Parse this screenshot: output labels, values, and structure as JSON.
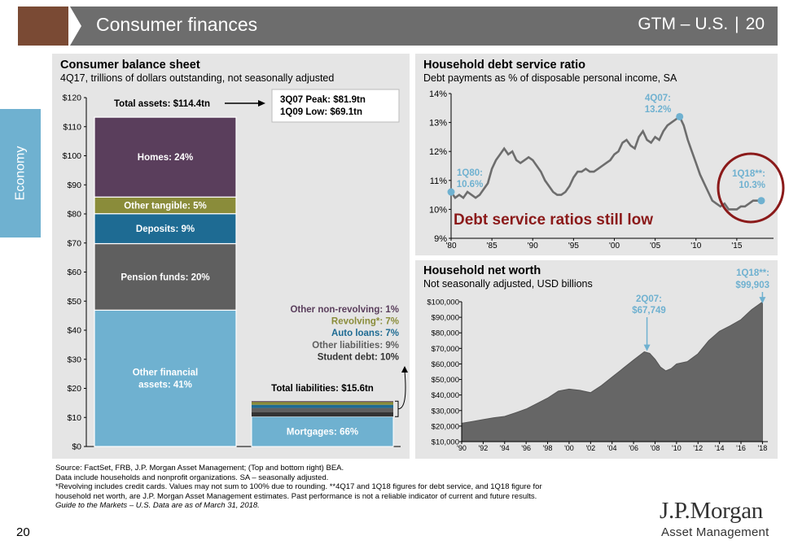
{
  "header": {
    "title": "Consumer finances",
    "product": "GTM – U.S.",
    "page": "20"
  },
  "side_tab": "Economy",
  "balance_sheet": {
    "title": "Consumer balance sheet",
    "subtitle": "4Q17, trillions of dollars outstanding, not seasonally adjusted",
    "total_assets_label": "Total assets: $114.4tn",
    "callout_peak": "3Q07 Peak: $81.9tn",
    "callout_low": "1Q09 Low:  $69.1tn",
    "total_liabilities_label": "Total liabilities: $15.6tn"
  },
  "debt_service": {
    "title": "Household debt service ratio",
    "subtitle": "Debt payments as % of disposable personal income, SA",
    "annotation_start": [
      "1Q80:",
      "10.6%"
    ],
    "annotation_peak": [
      "4Q07:",
      "13.2%"
    ],
    "annotation_end": [
      "1Q18**:",
      "10.3%"
    ],
    "headline": "Debt service ratios still low"
  },
  "net_worth": {
    "title": "Household net worth",
    "subtitle": "Not seasonally adjusted, USD billions",
    "annotation_peak": [
      "2Q07:",
      "$67,749"
    ],
    "annotation_end": [
      "1Q18**:",
      "$99,903"
    ]
  },
  "footnotes": [
    "Source: FactSet, FRB, J.P. Morgan Asset Management; (Top and bottom right) BEA.",
    "Data include households and nonprofit organizations. SA – seasonally adjusted.",
    "*Revolving includes credit cards. Values may not sum to 100% due to rounding. **4Q17 and 1Q18 figures for debt service, and 1Q18 figure for",
    "household net worth, are J.P. Morgan Asset Management estimates. Past performance is not a reliable indicator of current and future results.",
    "Guide to the Markets – U.S. Data are as of March 31, 2018."
  ],
  "page_number": "20",
  "logo": {
    "main": "J.P.Morgan",
    "sub": "Asset Management"
  },
  "colors": {
    "header": "#6d6d6d",
    "header_accent": "#7a4a34",
    "side_tab": "#6fb1d0",
    "panel": "#e5e5e5",
    "homes": "#5a3e5c",
    "other_tangible": "#8a8c3a",
    "deposits": "#1e6b93",
    "pension": "#5f5f5f",
    "other_financial": "#6fb1d0",
    "mortgages": "#6fb1d0",
    "line": "#6d6d6d",
    "highlight": "#8b1a1a",
    "marker": "#6fb1d0"
  },
  "chart_data": [
    {
      "type": "bar",
      "name": "Consumer balance sheet",
      "ylim": [
        0,
        120
      ],
      "yticks": [
        "$0",
        "$10",
        "$20",
        "$30",
        "$40",
        "$50",
        "$60",
        "$70",
        "$80",
        "$90",
        "$100",
        "$110",
        "$120"
      ],
      "assets_total": 114.4,
      "liabilities_total": 15.6,
      "assets": [
        {
          "label": "Other financial assets: 41%",
          "lines": [
            "Other financial",
            "assets: 41%"
          ],
          "pct": 41,
          "color": "#6fb1d0"
        },
        {
          "label": "Pension funds: 20%",
          "lines": [
            "Pension funds: 20%"
          ],
          "pct": 20,
          "color": "#5f5f5f"
        },
        {
          "label": "Deposits: 9%",
          "lines": [
            "Deposits: 9%"
          ],
          "pct": 9,
          "color": "#1e6b93"
        },
        {
          "label": "Other tangible: 5%",
          "lines": [
            "Other tangible: 5%"
          ],
          "pct": 5,
          "color": "#8a8c3a"
        },
        {
          "label": "Homes: 24%",
          "lines": [
            "Homes: 24%"
          ],
          "pct": 24,
          "color": "#5a3e5c"
        }
      ],
      "liabilities": [
        {
          "label": "Mortgages: 66%",
          "pct": 66,
          "color": "#6fb1d0",
          "textColor": "#ffffff"
        },
        {
          "label": "Student debt: 10%",
          "pct": 10,
          "color": "#333333",
          "textColor": "#333333"
        },
        {
          "label": "Other liabilities: 9%",
          "pct": 9,
          "color": "#5f5f5f",
          "textColor": "#5f5f5f"
        },
        {
          "label": "Auto loans: 7%",
          "pct": 7,
          "color": "#1e6b93",
          "textColor": "#1e6b93"
        },
        {
          "label": "Revolving*:  7%",
          "pct": 7,
          "color": "#8a8c3a",
          "textColor": "#8a8c3a"
        },
        {
          "label": "Other non-revolving: 1%",
          "pct": 1,
          "color": "#5a3e5c",
          "textColor": "#5a3e5c"
        }
      ]
    },
    {
      "type": "line",
      "name": "Household debt service ratio",
      "ylim": [
        9,
        14
      ],
      "xlim": [
        1980,
        2019.5
      ],
      "yticks": [
        "9%",
        "10%",
        "11%",
        "12%",
        "13%",
        "14%"
      ],
      "xticks": [
        {
          "x": 1980,
          "label": "'80"
        },
        {
          "x": 1985,
          "label": "'85"
        },
        {
          "x": 1990,
          "label": "'90"
        },
        {
          "x": 1995,
          "label": "'95"
        },
        {
          "x": 2000,
          "label": "'00"
        },
        {
          "x": 2005,
          "label": "'05"
        },
        {
          "x": 2010,
          "label": "'10"
        },
        {
          "x": 2015,
          "label": "'15"
        }
      ],
      "points": [
        [
          1980.0,
          10.6
        ],
        [
          1980.5,
          10.4
        ],
        [
          1981.0,
          10.5
        ],
        [
          1981.5,
          10.4
        ],
        [
          1982.0,
          10.6
        ],
        [
          1982.5,
          10.5
        ],
        [
          1983.0,
          10.4
        ],
        [
          1983.5,
          10.5
        ],
        [
          1984.0,
          10.7
        ],
        [
          1984.5,
          10.9
        ],
        [
          1985.0,
          11.4
        ],
        [
          1985.5,
          11.7
        ],
        [
          1986.0,
          11.9
        ],
        [
          1986.5,
          12.1
        ],
        [
          1987.0,
          11.9
        ],
        [
          1987.5,
          12.0
        ],
        [
          1988.0,
          11.7
        ],
        [
          1988.5,
          11.6
        ],
        [
          1989.0,
          11.7
        ],
        [
          1989.5,
          11.8
        ],
        [
          1990.0,
          11.7
        ],
        [
          1990.5,
          11.5
        ],
        [
          1991.0,
          11.3
        ],
        [
          1991.5,
          11.0
        ],
        [
          1992.0,
          10.8
        ],
        [
          1992.5,
          10.6
        ],
        [
          1993.0,
          10.5
        ],
        [
          1993.5,
          10.5
        ],
        [
          1994.0,
          10.6
        ],
        [
          1994.5,
          10.8
        ],
        [
          1995.0,
          11.1
        ],
        [
          1995.5,
          11.3
        ],
        [
          1996.0,
          11.3
        ],
        [
          1996.5,
          11.4
        ],
        [
          1997.0,
          11.3
        ],
        [
          1997.5,
          11.3
        ],
        [
          1998.0,
          11.4
        ],
        [
          1998.5,
          11.5
        ],
        [
          1999.0,
          11.6
        ],
        [
          1999.5,
          11.7
        ],
        [
          2000.0,
          11.9
        ],
        [
          2000.5,
          12.0
        ],
        [
          2001.0,
          12.3
        ],
        [
          2001.5,
          12.4
        ],
        [
          2002.0,
          12.2
        ],
        [
          2002.5,
          12.1
        ],
        [
          2003.0,
          12.5
        ],
        [
          2003.5,
          12.7
        ],
        [
          2004.0,
          12.4
        ],
        [
          2004.5,
          12.3
        ],
        [
          2005.0,
          12.5
        ],
        [
          2005.5,
          12.4
        ],
        [
          2006.0,
          12.7
        ],
        [
          2006.5,
          12.9
        ],
        [
          2007.0,
          13.0
        ],
        [
          2007.5,
          13.1
        ],
        [
          2008.0,
          13.2
        ],
        [
          2008.5,
          12.9
        ],
        [
          2009.0,
          12.4
        ],
        [
          2009.5,
          12.0
        ],
        [
          2010.0,
          11.6
        ],
        [
          2010.5,
          11.2
        ],
        [
          2011.0,
          10.9
        ],
        [
          2011.5,
          10.6
        ],
        [
          2012.0,
          10.3
        ],
        [
          2012.5,
          10.2
        ],
        [
          2013.0,
          10.1
        ],
        [
          2013.5,
          10.2
        ],
        [
          2014.0,
          10.0
        ],
        [
          2014.5,
          10.0
        ],
        [
          2015.0,
          10.0
        ],
        [
          2015.5,
          10.1
        ],
        [
          2016.0,
          10.1
        ],
        [
          2016.5,
          10.2
        ],
        [
          2017.0,
          10.3
        ],
        [
          2017.5,
          10.3
        ],
        [
          2018.0,
          10.3
        ]
      ],
      "markers": [
        [
          1980.0,
          10.6
        ],
        [
          2008.0,
          13.2
        ],
        [
          2018.0,
          10.3
        ]
      ]
    },
    {
      "type": "area",
      "name": "Household net worth",
      "ylim": [
        10000,
        100000
      ],
      "xlim": [
        1990,
        2018.5
      ],
      "yticks": [
        "$10,000",
        "$20,000",
        "$30,000",
        "$40,000",
        "$50,000",
        "$60,000",
        "$70,000",
        "$80,000",
        "$90,000",
        "$100,000"
      ],
      "xticks": [
        {
          "x": 1990,
          "label": "'90"
        },
        {
          "x": 1992,
          "label": "'92"
        },
        {
          "x": 1994,
          "label": "'94"
        },
        {
          "x": 1996,
          "label": "'96"
        },
        {
          "x": 1998,
          "label": "'98"
        },
        {
          "x": 2000,
          "label": "'00"
        },
        {
          "x": 2002,
          "label": "'02"
        },
        {
          "x": 2004,
          "label": "'04"
        },
        {
          "x": 2006,
          "label": "'06"
        },
        {
          "x": 2008,
          "label": "'08"
        },
        {
          "x": 2010,
          "label": "'10"
        },
        {
          "x": 2012,
          "label": "'12"
        },
        {
          "x": 2014,
          "label": "'14"
        },
        {
          "x": 2016,
          "label": "'16"
        },
        {
          "x": 2018,
          "label": "'18"
        }
      ],
      "points": [
        [
          1990,
          21800
        ],
        [
          1991,
          23000
        ],
        [
          1992,
          24200
        ],
        [
          1993,
          25400
        ],
        [
          1994,
          26200
        ],
        [
          1995,
          28500
        ],
        [
          1996,
          31000
        ],
        [
          1997,
          34500
        ],
        [
          1998,
          38000
        ],
        [
          1999,
          42500
        ],
        [
          2000,
          43800
        ],
        [
          2001,
          43000
        ],
        [
          2002,
          41500
        ],
        [
          2003,
          46000
        ],
        [
          2004,
          51500
        ],
        [
          2005,
          57000
        ],
        [
          2006,
          62500
        ],
        [
          2007,
          67749
        ],
        [
          2007.5,
          66800
        ],
        [
          2008,
          63000
        ],
        [
          2008.5,
          58000
        ],
        [
          2009,
          55500
        ],
        [
          2009.5,
          57000
        ],
        [
          2010,
          60000
        ],
        [
          2011,
          61500
        ],
        [
          2012,
          66500
        ],
        [
          2013,
          75000
        ],
        [
          2014,
          81000
        ],
        [
          2015,
          84500
        ],
        [
          2016,
          88500
        ],
        [
          2017,
          95000
        ],
        [
          2018,
          99903
        ]
      ],
      "markers": [
        [
          2007.25,
          67749
        ],
        [
          2018,
          99903
        ]
      ]
    }
  ]
}
